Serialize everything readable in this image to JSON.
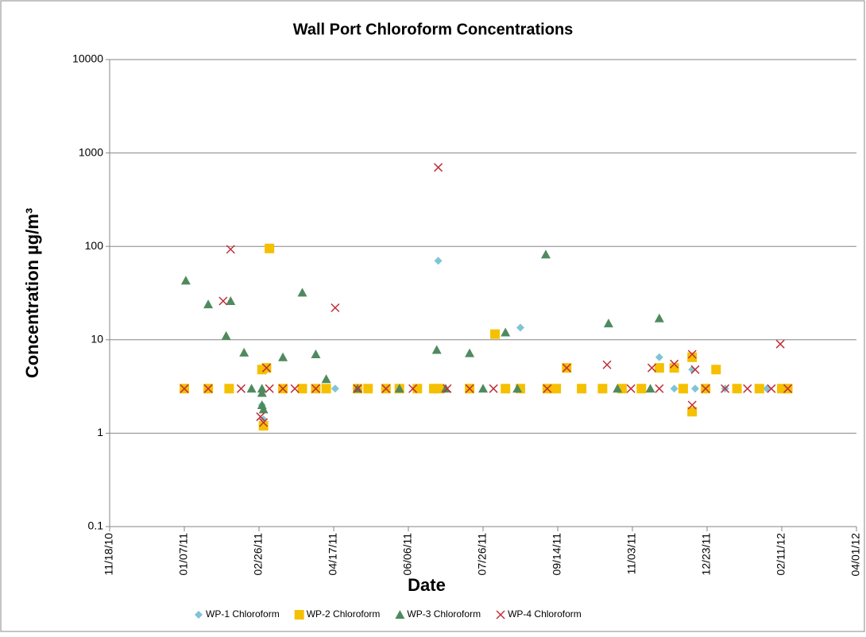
{
  "chart_data": {
    "type": "scatter",
    "title": "Wall Port Chloroform Concentrations",
    "x_label": "Date",
    "y_label": "Concentration µg/m³",
    "xlim": [
      "11/18/10",
      "04/01/12"
    ],
    "xticks": [
      "11/18/10",
      "01/07/11",
      "02/26/11",
      "04/17/11",
      "06/06/11",
      "07/26/11",
      "09/14/11",
      "11/03/11",
      "12/23/11",
      "02/11/12",
      "04/01/12"
    ],
    "ylim": [
      0.1,
      10000
    ],
    "yticks": [
      0.1,
      1,
      10,
      100,
      1000,
      10000
    ],
    "y_scale": "log",
    "grid": true,
    "legend": "bottom",
    "series": [
      {
        "name": "WP-1 Chloroform",
        "color": "#7fc4d8",
        "marker": "diamond",
        "x": [
          "01/07/11",
          "02/28/11",
          "03/01/11",
          "03/02/11",
          "04/18/11",
          "06/26/11",
          "08/20/11",
          "11/21/11",
          "12/01/11",
          "12/13/11",
          "12/15/11",
          "12/29/11",
          "01/04/12",
          "02/01/12"
        ],
        "values": [
          3,
          2.0,
          1.4,
          4.7,
          3,
          70,
          13.5,
          6.5,
          3,
          4.8,
          3,
          4.8,
          3,
          3
        ]
      },
      {
        "name": "WP-2 Chloroform",
        "color": "#f5c000",
        "marker": "square",
        "x": [
          "01/07/11",
          "01/23/11",
          "02/06/11",
          "02/28/11",
          "03/01/11",
          "03/03/11",
          "03/05/11",
          "03/14/11",
          "03/27/11",
          "04/05/11",
          "04/12/11",
          "05/03/11",
          "05/10/11",
          "05/22/11",
          "05/31/11",
          "06/12/11",
          "06/23/11",
          "06/27/11",
          "07/17/11",
          "08/03/11",
          "08/10/11",
          "08/20/11",
          "09/07/11",
          "09/13/11",
          "09/20/11",
          "09/30/11",
          "10/14/11",
          "10/27/11",
          "11/09/11",
          "11/21/11",
          "12/01/11",
          "12/07/11",
          "12/13/11",
          "12/13/11",
          "12/22/11",
          "12/29/11",
          "01/12/12",
          "01/27/12",
          "02/11/12",
          "02/15/12"
        ],
        "values": [
          3,
          3,
          3,
          4.8,
          1.2,
          5,
          95,
          3,
          3,
          3,
          3,
          3,
          3,
          3,
          3,
          3,
          3,
          3,
          3,
          11.5,
          3,
          3,
          3,
          3,
          5,
          3,
          3,
          3,
          3,
          5,
          5,
          3,
          6.5,
          1.7,
          3,
          4.8,
          3,
          3,
          3,
          3
        ]
      },
      {
        "name": "WP-3 Chloroform",
        "color": "#4f8a5e",
        "marker": "triangle",
        "x": [
          "01/08/11",
          "01/23/11",
          "02/04/11",
          "02/07/11",
          "02/16/11",
          "02/21/11",
          "02/28/11",
          "02/28/11",
          "02/28/11",
          "03/01/11",
          "03/14/11",
          "03/27/11",
          "04/05/11",
          "04/12/11",
          "05/03/11",
          "05/31/11",
          "06/25/11",
          "07/01/11",
          "07/17/11",
          "07/26/11",
          "08/10/11",
          "08/18/11",
          "09/06/11",
          "10/18/11",
          "10/24/11",
          "11/15/11",
          "11/21/11"
        ],
        "values": [
          43,
          24,
          11,
          26,
          7.3,
          3,
          3,
          2.7,
          2.0,
          1.8,
          6.5,
          32,
          7,
          3.8,
          3,
          3,
          7.8,
          3,
          7.2,
          3,
          12,
          3,
          82,
          15,
          3,
          3,
          17
        ]
      },
      {
        "name": "WP-4 Chloroform",
        "color": "#c0303a",
        "marker": "x",
        "x": [
          "01/07/11",
          "01/23/11",
          "02/02/11",
          "02/07/11",
          "02/14/11",
          "02/27/11",
          "03/01/11",
          "03/03/11",
          "03/05/11",
          "03/14/11",
          "03/22/11",
          "04/05/11",
          "04/18/11",
          "05/03/11",
          "05/22/11",
          "06/09/11",
          "06/26/11",
          "07/02/11",
          "07/17/11",
          "08/02/11",
          "09/07/11",
          "09/20/11",
          "10/17/11",
          "11/02/11",
          "11/16/11",
          "11/21/11",
          "12/01/11",
          "12/13/11",
          "12/13/11",
          "12/15/11",
          "12/22/11",
          "01/04/12",
          "01/19/12",
          "02/04/12",
          "02/10/12",
          "02/15/12"
        ],
        "values": [
          3,
          3,
          26,
          93,
          3,
          1.5,
          1.3,
          5,
          3,
          3,
          3,
          3,
          22,
          3,
          3,
          3,
          700,
          3,
          3,
          3,
          3,
          5,
          5.4,
          3,
          5,
          3,
          5.5,
          7,
          2,
          4.8,
          3,
          3,
          3,
          3,
          9,
          3
        ]
      }
    ]
  }
}
